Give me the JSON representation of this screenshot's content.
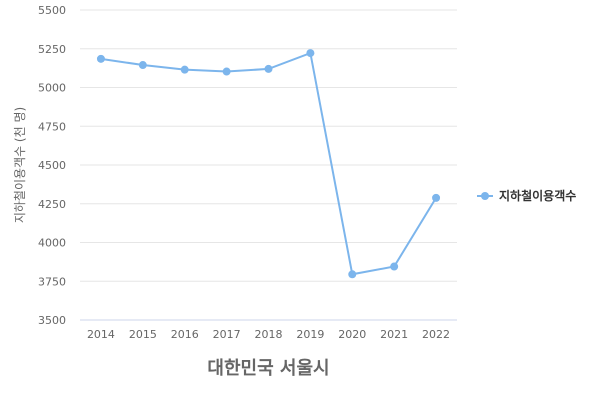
{
  "chart_data": {
    "type": "line",
    "xlabel": "대한민국 서울시",
    "ylabel": "지하철이용객수 (천 명)",
    "categories": [
      "2014",
      "2015",
      "2016",
      "2017",
      "2018",
      "2019",
      "2020",
      "2021",
      "2022"
    ],
    "yticks": [
      "3500",
      "3750",
      "4000",
      "4250",
      "4500",
      "4750",
      "5000",
      "5250",
      "5500"
    ],
    "ylim": [
      3500,
      5500
    ],
    "grid": true,
    "legend_position": "right",
    "series": [
      {
        "name": "지하철이용객수",
        "color": "#7cb5ec",
        "values": [
          5185,
          5145,
          5115,
          5103,
          5120,
          5222,
          3795,
          3845,
          4288
        ]
      }
    ]
  }
}
